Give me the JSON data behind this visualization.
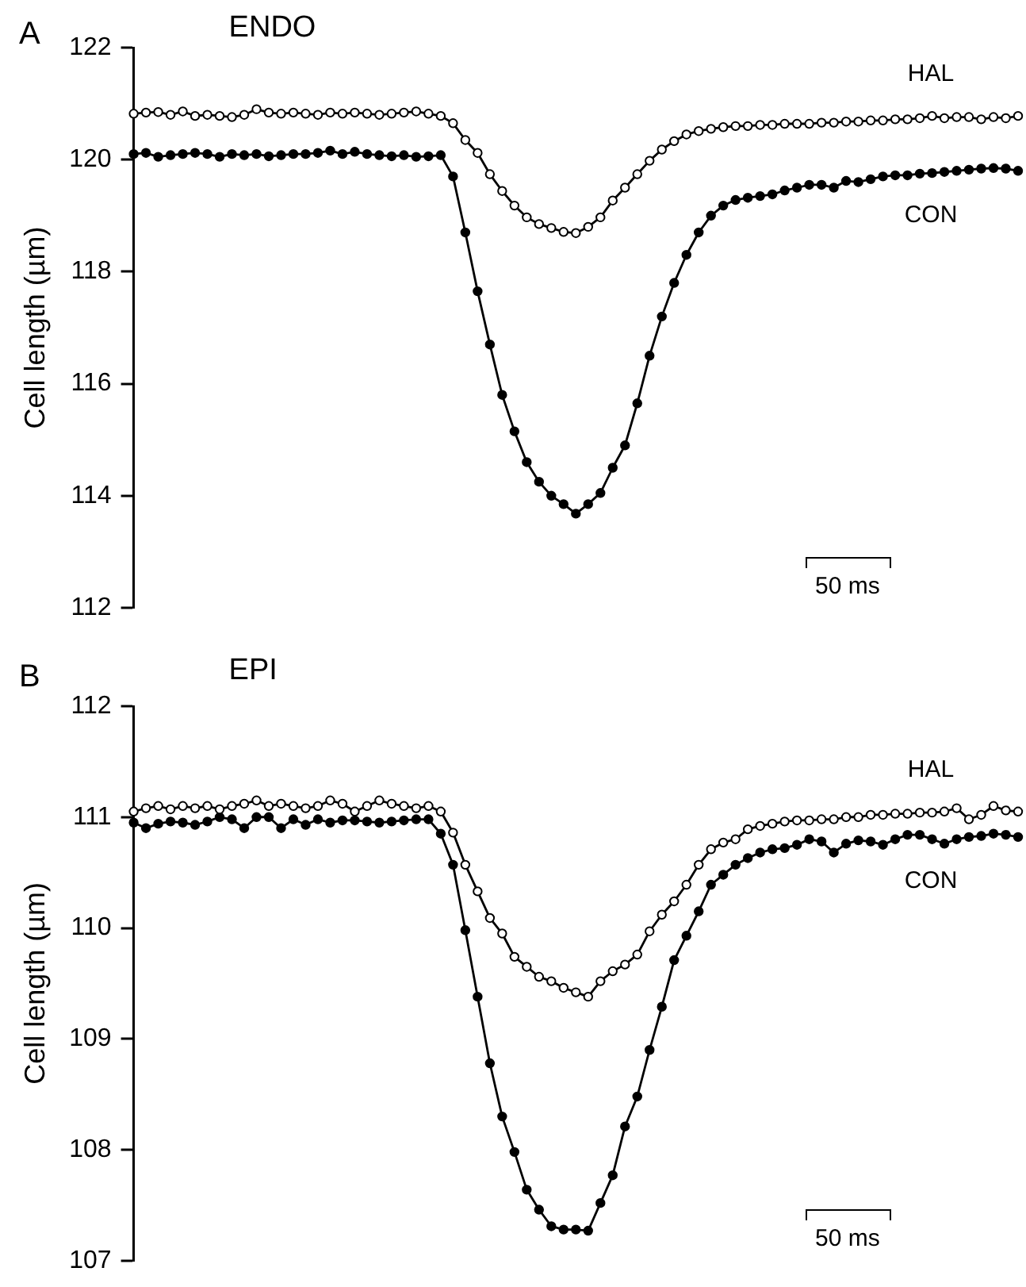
{
  "chart_data": [
    {
      "type": "line",
      "title": "ENDO",
      "ylabel": "Cell length (µm)",
      "annotations": [
        "A",
        "50 ms"
      ],
      "categories": [
        null,
        null,
        null,
        null,
        null,
        null,
        null,
        null,
        null,
        null,
        null,
        null,
        null,
        null,
        null,
        null,
        null,
        null,
        null,
        null,
        null,
        null,
        null,
        null,
        null,
        null,
        null,
        null,
        null,
        null,
        null,
        null,
        null,
        null,
        null,
        null,
        null,
        null,
        null,
        null,
        null,
        null,
        null,
        null,
        null,
        null,
        null,
        null,
        null,
        null,
        null,
        null,
        null,
        null,
        null,
        null,
        null,
        null,
        null,
        null,
        null,
        null,
        null,
        null,
        null,
        null,
        null,
        null,
        null,
        null,
        null,
        null,
        null
      ],
      "ylim": [
        112,
        122
      ],
      "yticks": [
        112,
        114,
        116,
        118,
        120,
        122
      ],
      "grid": false,
      "legend": false,
      "tick_labels": "y",
      "marker": "circle",
      "line_style": "solid",
      "series": [
        {
          "name": "HAL",
          "color": "#000000",
          "values": [
            120.82,
            120.84,
            120.85,
            120.8,
            120.86,
            120.78,
            120.8,
            120.78,
            120.76,
            120.8,
            120.9,
            120.84,
            120.82,
            120.84,
            120.82,
            120.8,
            120.84,
            120.82,
            120.84,
            120.82,
            120.8,
            120.82,
            120.84,
            120.86,
            120.82,
            120.78,
            120.65,
            120.35,
            120.12,
            119.74,
            119.44,
            119.18,
            118.97,
            118.85,
            118.78,
            118.71,
            118.69,
            118.8,
            118.97,
            119.27,
            119.5,
            119.74,
            119.98,
            120.18,
            120.33,
            120.45,
            120.51,
            120.55,
            120.58,
            120.6,
            120.6,
            120.62,
            120.62,
            120.64,
            120.64,
            120.64,
            120.66,
            120.66,
            120.68,
            120.68,
            120.7,
            120.7,
            120.72,
            120.72,
            120.74,
            120.78,
            120.74,
            120.76,
            120.76,
            120.72,
            120.76,
            120.74,
            120.78
          ]
        },
        {
          "name": "CON",
          "color": "#000000",
          "values": [
            120.1,
            120.12,
            120.05,
            120.08,
            120.1,
            120.12,
            120.1,
            120.05,
            120.1,
            120.08,
            120.1,
            120.06,
            120.08,
            120.1,
            120.1,
            120.12,
            120.16,
            120.1,
            120.14,
            120.1,
            120.08,
            120.06,
            120.08,
            120.05,
            120.06,
            120.08,
            119.7,
            118.7,
            117.65,
            116.7,
            115.8,
            115.15,
            114.6,
            114.25,
            114.0,
            113.85,
            113.68,
            113.85,
            114.05,
            114.5,
            114.9,
            115.65,
            116.5,
            117.2,
            117.8,
            118.3,
            118.7,
            119.0,
            119.18,
            119.28,
            119.32,
            119.35,
            119.38,
            119.45,
            119.5,
            119.55,
            119.55,
            119.5,
            119.62,
            119.6,
            119.65,
            119.7,
            119.72,
            119.72,
            119.75,
            119.76,
            119.78,
            119.8,
            119.82,
            119.84,
            119.85,
            119.84,
            119.8
          ]
        }
      ]
    },
    {
      "type": "line",
      "title": "EPI",
      "ylabel": "Cell length (µm)",
      "annotations": [
        "B",
        "50 ms"
      ],
      "categories": [
        null,
        null,
        null,
        null,
        null,
        null,
        null,
        null,
        null,
        null,
        null,
        null,
        null,
        null,
        null,
        null,
        null,
        null,
        null,
        null,
        null,
        null,
        null,
        null,
        null,
        null,
        null,
        null,
        null,
        null,
        null,
        null,
        null,
        null,
        null,
        null,
        null,
        null,
        null,
        null,
        null,
        null,
        null,
        null,
        null,
        null,
        null,
        null,
        null,
        null,
        null,
        null,
        null,
        null,
        null,
        null,
        null,
        null,
        null,
        null,
        null,
        null,
        null,
        null,
        null,
        null,
        null,
        null,
        null,
        null,
        null,
        null,
        null
      ],
      "ylim": [
        107,
        112
      ],
      "yticks": [
        107,
        108,
        109,
        110,
        111,
        112
      ],
      "grid": false,
      "legend": false,
      "tick_labels": "y",
      "marker": "circle",
      "line_style": "solid",
      "series": [
        {
          "name": "HAL",
          "color": "#000000",
          "values": [
            111.05,
            111.08,
            111.1,
            111.07,
            111.1,
            111.08,
            111.1,
            111.07,
            111.1,
            111.12,
            111.15,
            111.1,
            111.12,
            111.1,
            111.08,
            111.1,
            111.15,
            111.12,
            111.05,
            111.1,
            111.15,
            111.12,
            111.1,
            111.08,
            111.1,
            111.05,
            110.86,
            110.57,
            110.33,
            110.09,
            109.95,
            109.74,
            109.65,
            109.56,
            109.52,
            109.46,
            109.42,
            109.38,
            109.52,
            109.61,
            109.67,
            109.76,
            109.97,
            110.12,
            110.24,
            110.39,
            110.57,
            110.71,
            110.77,
            110.8,
            110.89,
            110.92,
            110.94,
            110.96,
            110.97,
            110.97,
            110.98,
            110.98,
            111.0,
            111.0,
            111.02,
            111.02,
            111.03,
            111.03,
            111.04,
            111.04,
            111.05,
            111.08,
            110.98,
            111.02,
            111.1,
            111.06,
            111.05
          ]
        },
        {
          "name": "CON",
          "color": "#000000",
          "values": [
            110.95,
            110.9,
            110.94,
            110.96,
            110.95,
            110.93,
            110.96,
            111.0,
            110.98,
            110.9,
            111.0,
            111.0,
            110.9,
            110.98,
            110.93,
            110.98,
            110.95,
            110.97,
            110.97,
            110.96,
            110.95,
            110.96,
            110.97,
            110.98,
            110.98,
            110.85,
            110.57,
            109.98,
            109.38,
            108.78,
            108.3,
            107.98,
            107.64,
            107.46,
            107.31,
            107.28,
            107.28,
            107.27,
            107.52,
            107.77,
            108.21,
            108.48,
            108.9,
            109.29,
            109.71,
            109.93,
            110.15,
            110.39,
            110.48,
            110.57,
            110.63,
            110.68,
            110.71,
            110.72,
            110.75,
            110.8,
            110.78,
            110.68,
            110.76,
            110.79,
            110.78,
            110.75,
            110.8,
            110.84,
            110.84,
            110.8,
            110.76,
            110.8,
            110.82,
            110.83,
            110.85,
            110.84,
            110.82
          ]
        }
      ]
    }
  ]
}
